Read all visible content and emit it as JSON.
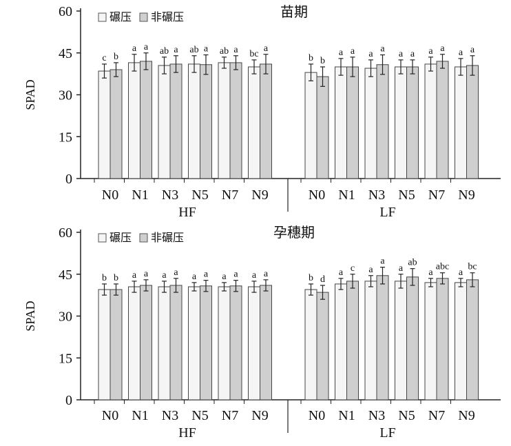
{
  "chart_data": [
    {
      "type": "bar",
      "title": "苗期",
      "ylabel": "SPAD",
      "ylim": [
        0,
        60
      ],
      "yticks": [
        "0",
        "15",
        "30",
        "45",
        "60"
      ],
      "legend": {
        "position": "top-left",
        "entries": [
          "碾压",
          "非碾压"
        ]
      },
      "groups": [
        "HF",
        "LF"
      ],
      "categories": [
        "N0",
        "N1",
        "N3",
        "N5",
        "N7",
        "N9"
      ],
      "series": [
        {
          "name": "碾压",
          "color": "#f5f5f5",
          "values": {
            "HF": [
              38.5,
              41.5,
              40.5,
              41.0,
              41.5,
              40.0
            ],
            "LF": [
              38.0,
              40.0,
              39.5,
              40.0,
              41.0,
              40.0
            ]
          },
          "errors": {
            "HF": [
              2.5,
              3.0,
              3.0,
              3.0,
              2.0,
              2.5
            ],
            "LF": [
              3.0,
              3.0,
              3.0,
              2.5,
              2.5,
              3.0
            ]
          },
          "labels": {
            "HF": [
              "c",
              "a",
              "ab",
              "ab",
              "ab",
              "bc"
            ],
            "LF": [
              "b",
              "a",
              "a",
              "a",
              "a",
              "a"
            ]
          }
        },
        {
          "name": "非碾压",
          "color": "#cfcfcf",
          "values": {
            "HF": [
              39.0,
              42.0,
              41.0,
              40.8,
              41.5,
              41.0
            ],
            "LF": [
              36.5,
              40.0,
              40.8,
              40.0,
              42.0,
              40.5
            ]
          },
          "errors": {
            "HF": [
              2.5,
              3.0,
              3.0,
              3.5,
              2.5,
              3.5
            ],
            "LF": [
              3.5,
              3.5,
              3.5,
              2.5,
              2.5,
              3.5
            ]
          },
          "labels": {
            "HF": [
              "b",
              "a",
              "a",
              "a",
              "a",
              "a"
            ],
            "LF": [
              "b",
              "a",
              "a",
              "a",
              "a",
              "a"
            ]
          }
        }
      ]
    },
    {
      "type": "bar",
      "title": "孕穗期",
      "ylabel": "SPAD",
      "ylim": [
        0,
        60
      ],
      "yticks": [
        "0",
        "15",
        "30",
        "45",
        "60"
      ],
      "legend": {
        "position": "top-left",
        "entries": [
          "碾压",
          "非碾压"
        ]
      },
      "groups": [
        "HF",
        "LF"
      ],
      "categories": [
        "N0",
        "N1",
        "N3",
        "N5",
        "N7",
        "N9"
      ],
      "series": [
        {
          "name": "碾压",
          "color": "#f5f5f5",
          "values": {
            "HF": [
              39.5,
              40.5,
              40.5,
              40.5,
              40.5,
              40.5
            ],
            "LF": [
              39.5,
              41.5,
              42.5,
              42.5,
              42.0,
              42.0
            ]
          },
          "errors": {
            "HF": [
              2.0,
              2.0,
              2.0,
              1.5,
              1.5,
              2.0
            ],
            "LF": [
              2.0,
              2.0,
              2.0,
              2.5,
              1.5,
              1.5
            ]
          },
          "labels": {
            "HF": [
              "b",
              "a",
              "a",
              "a",
              "a",
              "a"
            ],
            "LF": [
              "b",
              "a",
              "a",
              "a",
              "a",
              "a"
            ]
          }
        },
        {
          "name": "非碾压",
          "color": "#cfcfcf",
          "values": {
            "HF": [
              39.5,
              41.0,
              41.0,
              40.8,
              40.8,
              41.0
            ],
            "LF": [
              38.5,
              42.5,
              44.5,
              44.0,
              43.5,
              43.0
            ]
          },
          "errors": {
            "HF": [
              2.0,
              2.0,
              2.5,
              2.0,
              2.0,
              2.0
            ],
            "LF": [
              2.5,
              2.5,
              3.0,
              3.0,
              2.0,
              2.5
            ]
          },
          "labels": {
            "HF": [
              "b",
              "a",
              "a",
              "a",
              "a",
              "a"
            ],
            "LF": [
              "d",
              "c",
              "a",
              "ab",
              "abc",
              "bc"
            ]
          }
        }
      ]
    }
  ]
}
